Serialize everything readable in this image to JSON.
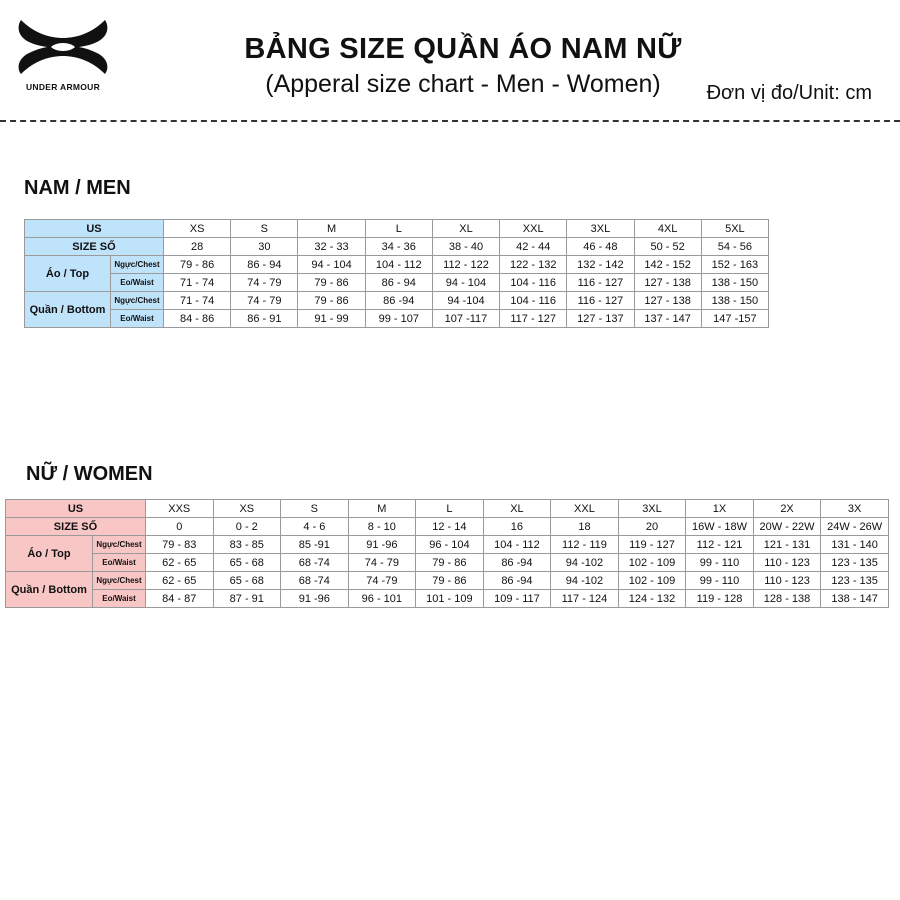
{
  "header": {
    "logo_text": "UNDER ARMOUR",
    "title": "BẢNG SIZE QUẦN ÁO NAM NỮ",
    "subtitle": "(Apperal size chart - Men - Women)",
    "unit": "Đơn vị đo/Unit: cm"
  },
  "colors": {
    "men_header": "#bfe3fb",
    "women_header": "#f9c6c6"
  },
  "labels": {
    "us": "US",
    "size_so": "SIZE SỐ",
    "top": "Áo / Top",
    "bottom": "Quần / Bottom",
    "chest": "Ngực/Chest",
    "waist": "Eo/Waist"
  },
  "men": {
    "heading": "NAM / MEN",
    "us": [
      "XS",
      "S",
      "M",
      "L",
      "XL",
      "XXL",
      "3XL",
      "4XL",
      "5XL"
    ],
    "size_so": [
      "28",
      "30",
      "32 - 33",
      "34 - 36",
      "38 - 40",
      "42 - 44",
      "46 - 48",
      "50 - 52",
      "54 - 56"
    ],
    "top_chest": [
      "79 - 86",
      "86 - 94",
      "94 - 104",
      "104 - 112",
      "112 - 122",
      "122 - 132",
      "132 - 142",
      "142 - 152",
      "152 - 163"
    ],
    "top_waist": [
      "71 - 74",
      "74 - 79",
      "79 - 86",
      "86 - 94",
      "94 - 104",
      "104 - 116",
      "116 - 127",
      "127 - 138",
      "138 - 150"
    ],
    "bottom_chest": [
      "71 - 74",
      "74 - 79",
      "79 - 86",
      "86 -94",
      "94 -104",
      "104 - 116",
      "116 - 127",
      "127 - 138",
      "138 - 150"
    ],
    "bottom_waist": [
      "84 - 86",
      "86 - 91",
      "91 - 99",
      "99 - 107",
      "107 -117",
      "117 - 127",
      "127 - 137",
      "137 - 147",
      "147 -157"
    ]
  },
  "women": {
    "heading": "NỮ / WOMEN",
    "us": [
      "XXS",
      "XS",
      "S",
      "M",
      "L",
      "XL",
      "XXL",
      "3XL",
      "1X",
      "2X",
      "3X"
    ],
    "size_so": [
      "0",
      "0 - 2",
      "4 - 6",
      "8 - 10",
      "12 - 14",
      "16",
      "18",
      "20",
      "16W - 18W",
      "20W - 22W",
      "24W - 26W"
    ],
    "top_chest": [
      "79 - 83",
      "83 - 85",
      "85 -91",
      "91 -96",
      "96 - 104",
      "104 - 112",
      "112 - 119",
      "119 - 127",
      "112 - 121",
      "121 - 131",
      "131 - 140"
    ],
    "top_waist": [
      "62 - 65",
      "65 - 68",
      "68 -74",
      "74 - 79",
      "79 - 86",
      "86 -94",
      "94 -102",
      "102 - 109",
      "99 - 110",
      "110 - 123",
      "123 - 135"
    ],
    "bottom_chest": [
      "62 - 65",
      "65 - 68",
      "68 -74",
      "74 -79",
      "79 - 86",
      "86 -94",
      "94 -102",
      "102 - 109",
      "99 - 110",
      "110 - 123",
      "123 - 135"
    ],
    "bottom_waist": [
      "84 - 87",
      "87 - 91",
      "91 -96",
      "96 - 101",
      "101 - 109",
      "109 - 117",
      "117 - 124",
      "124 - 132",
      "119 - 128",
      "128 - 138",
      "138 - 147"
    ]
  }
}
